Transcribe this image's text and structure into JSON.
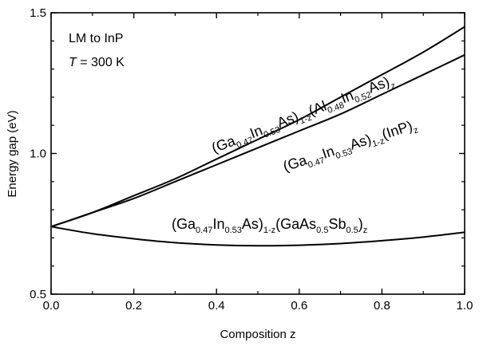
{
  "chart_data": {
    "type": "line",
    "xlabel": "Composition z",
    "ylabel": "Energy gap (eV)",
    "xlim": [
      0.0,
      1.0
    ],
    "ylim": [
      0.5,
      1.5
    ],
    "x_ticks": [
      "0.0",
      "0.2",
      "0.4",
      "0.6",
      "0.8",
      "1.0"
    ],
    "y_ticks": [
      "0.5",
      "1.0",
      "1.5"
    ],
    "annotations": {
      "line1": "LM to InP",
      "line2_italic": "T",
      "line2_rest": " = 300 K"
    },
    "grid": false,
    "series": [
      {
        "name": "(Ga0.47In0.53As)1-z(Al0.48In0.52As)z",
        "x": [
          0.0,
          0.1,
          0.2,
          0.3,
          0.4,
          0.5,
          0.6,
          0.7,
          0.8,
          0.9,
          1.0
        ],
        "y": [
          0.74,
          0.79,
          0.85,
          0.91,
          0.98,
          1.05,
          1.12,
          1.2,
          1.28,
          1.36,
          1.45
        ]
      },
      {
        "name": "(Ga0.47In0.53As)1-z(InP)z",
        "x": [
          0.0,
          0.1,
          0.2,
          0.3,
          0.4,
          0.5,
          0.6,
          0.7,
          0.8,
          0.9,
          1.0
        ],
        "y": [
          0.74,
          0.79,
          0.84,
          0.9,
          0.96,
          1.02,
          1.08,
          1.14,
          1.21,
          1.28,
          1.35
        ]
      },
      {
        "name": "(Ga0.47In0.53As)1-z(GaAs0.5Sb0.5)z",
        "x": [
          0.0,
          0.1,
          0.2,
          0.3,
          0.4,
          0.5,
          0.6,
          0.7,
          0.8,
          0.9,
          1.0
        ],
        "y": [
          0.74,
          0.715,
          0.697,
          0.683,
          0.675,
          0.672,
          0.674,
          0.68,
          0.69,
          0.703,
          0.72
        ]
      }
    ]
  }
}
